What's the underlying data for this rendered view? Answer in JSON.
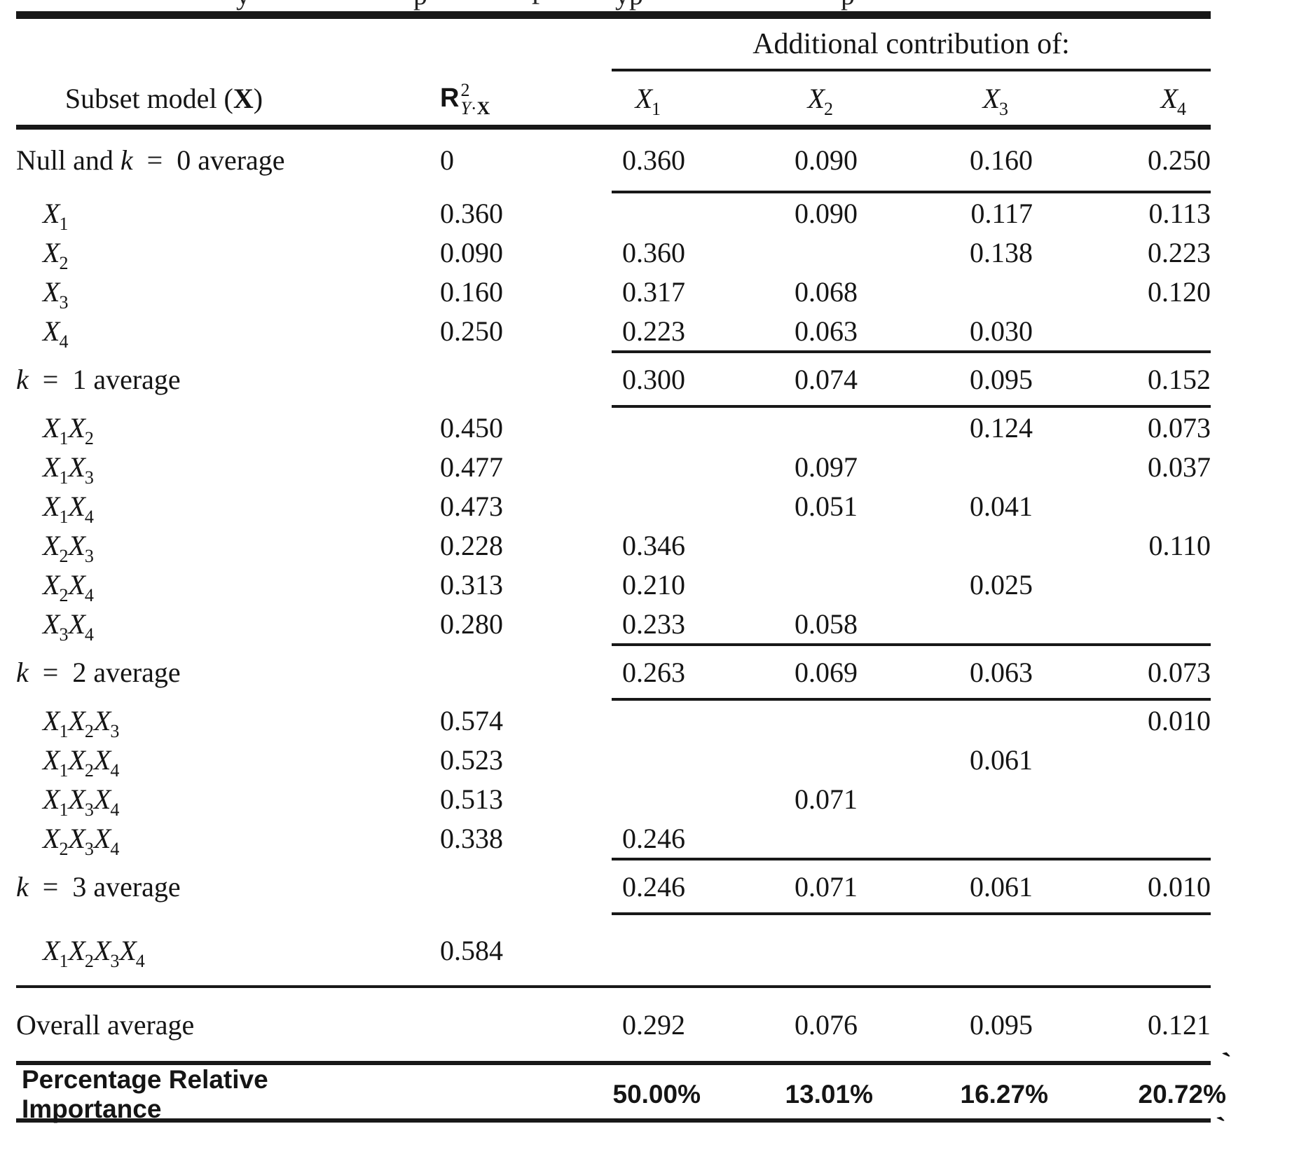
{
  "colors": {
    "text": "#151515",
    "rule": "#181818",
    "background": "#ffffff"
  },
  "table": {
    "caption_fragments": [
      "y",
      "p",
      "f",
      "yp",
      "p"
    ],
    "header": {
      "subset_model": "Subset model (X)",
      "r2_base": "R",
      "r2_sup": "2",
      "r2_sub_y": "Y",
      "r2_sub_dot": "·",
      "r2_sub_x": "X",
      "additional_contribution": "Additional contribution of:",
      "contrib_columns": [
        "X1",
        "X2",
        "X3",
        "X4"
      ]
    },
    "rows": [
      {
        "kind": "null",
        "label": "Null and k = 0 average",
        "r2": "0",
        "c": [
          "0.360",
          "0.090",
          "0.160",
          "0.250"
        ]
      },
      {
        "rule": "contrib"
      },
      {
        "kind": "model",
        "label": "X1",
        "r2": "0.360",
        "c": [
          "",
          "0.090",
          "0.117",
          "0.113"
        ]
      },
      {
        "kind": "model",
        "label": "X2",
        "r2": "0.090",
        "c": [
          "0.360",
          "",
          "0.138",
          "0.223"
        ]
      },
      {
        "kind": "model",
        "label": "X3",
        "r2": "0.160",
        "c": [
          "0.317",
          "0.068",
          "",
          "0.120"
        ]
      },
      {
        "kind": "model",
        "label": "X4",
        "r2": "0.250",
        "c": [
          "0.223",
          "0.063",
          "0.030",
          ""
        ]
      },
      {
        "rule": "contrib"
      },
      {
        "kind": "avg",
        "label": "k = 1 average",
        "r2": "",
        "c": [
          "0.300",
          "0.074",
          "0.095",
          "0.152"
        ]
      },
      {
        "rule": "contrib"
      },
      {
        "kind": "model",
        "label": "X1X2",
        "r2": "0.450",
        "c": [
          "",
          "",
          "0.124",
          "0.073"
        ]
      },
      {
        "kind": "model",
        "label": "X1X3",
        "r2": "0.477",
        "c": [
          "",
          "0.097",
          "",
          "0.037"
        ]
      },
      {
        "kind": "model",
        "label": "X1X4",
        "r2": "0.473",
        "c": [
          "",
          "0.051",
          "0.041",
          ""
        ]
      },
      {
        "kind": "model",
        "label": "X2X3",
        "r2": "0.228",
        "c": [
          "0.346",
          "",
          "",
          "0.110"
        ]
      },
      {
        "kind": "model",
        "label": "X2X4",
        "r2": "0.313",
        "c": [
          "0.210",
          "",
          "0.025",
          ""
        ]
      },
      {
        "kind": "model",
        "label": "X3X4",
        "r2": "0.280",
        "c": [
          "0.233",
          "0.058",
          "",
          ""
        ]
      },
      {
        "rule": "contrib"
      },
      {
        "kind": "avg",
        "label": "k = 2 average",
        "r2": "",
        "c": [
          "0.263",
          "0.069",
          "0.063",
          "0.073"
        ]
      },
      {
        "rule": "contrib"
      },
      {
        "kind": "model",
        "label": "X1X2X3",
        "r2": "0.574",
        "c": [
          "",
          "",
          "",
          "0.010"
        ]
      },
      {
        "kind": "model",
        "label": "X1X2X4",
        "r2": "0.523",
        "c": [
          "",
          "",
          "0.061",
          ""
        ]
      },
      {
        "kind": "model",
        "label": "X1X3X4",
        "r2": "0.513",
        "c": [
          "",
          "0.071",
          "",
          ""
        ]
      },
      {
        "kind": "model",
        "label": "X2X3X4",
        "r2": "0.338",
        "c": [
          "0.246",
          "",
          "",
          ""
        ]
      },
      {
        "rule": "contrib"
      },
      {
        "kind": "avg",
        "label": "k = 3 average",
        "r2": "",
        "c": [
          "0.246",
          "0.071",
          "0.061",
          "0.010"
        ]
      },
      {
        "rule": "contrib"
      },
      {
        "kind": "last",
        "label": "X1X2X3X4",
        "r2": "0.584",
        "c": [
          "",
          "",
          "",
          ""
        ]
      },
      {
        "rule": "full"
      },
      {
        "kind": "overall",
        "label": "Overall average",
        "r2": "",
        "c": [
          "0.292",
          "0.076",
          "0.095",
          "0.121"
        ]
      },
      {
        "rule": "full thick"
      },
      {
        "kind": "pct",
        "label": "Percentage Relative Importance",
        "r2": "",
        "c": [
          "50.00%",
          "13.01%",
          "16.27%",
          "20.72%"
        ]
      },
      {
        "rule": "full thick"
      }
    ],
    "artifacts": [
      "`",
      "`"
    ]
  }
}
